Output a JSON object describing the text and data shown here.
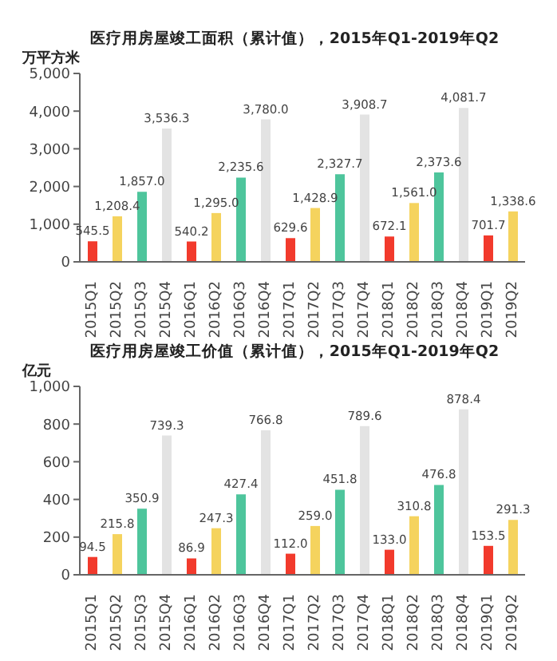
{
  "chart_data": [
    {
      "type": "bar",
      "title": "医疗用房屋竣工面积（累计值），2015年Q1-2019年Q2",
      "ylabel": "万平方米",
      "categories": [
        "2015Q1",
        "2015Q2",
        "2015Q3",
        "2015Q4",
        "2016Q1",
        "2016Q2",
        "2016Q3",
        "2016Q4",
        "2017Q1",
        "2017Q2",
        "2017Q3",
        "2017Q4",
        "2018Q1",
        "2018Q2",
        "2018Q3",
        "2018Q4",
        "2019Q1",
        "2019Q2"
      ],
      "values": [
        545.5,
        1208.4,
        1857.0,
        3536.3,
        540.2,
        1295.0,
        2235.6,
        3780.0,
        629.6,
        1428.9,
        2327.7,
        3908.7,
        672.1,
        1561.0,
        2373.6,
        4081.7,
        701.7,
        1338.6
      ],
      "value_labels": [
        "545.5",
        "1,208.4",
        "1,857.0",
        "3,536.3",
        "540.2",
        "1,295.0",
        "2,235.6",
        "3,780.0",
        "629.6",
        "1,428.9",
        "2,327.7",
        "3,908.7",
        "672.1",
        "1,561.0",
        "2,373.6",
        "4,081.7",
        "701.7",
        "1,338.6"
      ],
      "colors": [
        "#f23a2c",
        "#f5d35e",
        "#4ec59c",
        "#e3e3e3",
        "#f23a2c",
        "#f5d35e",
        "#4ec59c",
        "#e3e3e3",
        "#f23a2c",
        "#f5d35e",
        "#4ec59c",
        "#e3e3e3",
        "#f23a2c",
        "#f5d35e",
        "#4ec59c",
        "#e3e3e3",
        "#f23a2c",
        "#f5d35e"
      ],
      "ylim": [
        0,
        5000
      ],
      "yticks": [
        {
          "value": 0,
          "label": "0"
        },
        {
          "value": 1000,
          "label": "1,000"
        },
        {
          "value": 2000,
          "label": "2,000"
        },
        {
          "value": 3000,
          "label": "3,000"
        },
        {
          "value": 4000,
          "label": "4,000"
        },
        {
          "value": 5000,
          "label": "5,000"
        }
      ],
      "grid": false,
      "legend": false
    },
    {
      "type": "bar",
      "title": "医疗用房屋竣工价值（累计值），2015年Q1-2019年Q2",
      "ylabel": "亿元",
      "categories": [
        "2015Q1",
        "2015Q2",
        "2015Q3",
        "2015Q4",
        "2016Q1",
        "2016Q2",
        "2016Q3",
        "2016Q4",
        "2017Q1",
        "2017Q2",
        "2017Q3",
        "2017Q4",
        "2018Q1",
        "2018Q2",
        "2018Q3",
        "2018Q4",
        "2019Q1",
        "2019Q2"
      ],
      "values": [
        94.5,
        215.8,
        350.9,
        739.3,
        86.9,
        247.3,
        427.4,
        766.8,
        112.0,
        259.0,
        451.8,
        789.6,
        133.0,
        310.8,
        476.8,
        878.4,
        153.5,
        291.3
      ],
      "value_labels": [
        "94.5",
        "215.8",
        "350.9",
        "739.3",
        "86.9",
        "247.3",
        "427.4",
        "766.8",
        "112.0",
        "259.0",
        "451.8",
        "789.6",
        "133.0",
        "310.8",
        "476.8",
        "878.4",
        "153.5",
        "291.3"
      ],
      "colors": [
        "#f23a2c",
        "#f5d35e",
        "#4ec59c",
        "#e3e3e3",
        "#f23a2c",
        "#f5d35e",
        "#4ec59c",
        "#e3e3e3",
        "#f23a2c",
        "#f5d35e",
        "#4ec59c",
        "#e3e3e3",
        "#f23a2c",
        "#f5d35e",
        "#4ec59c",
        "#e3e3e3",
        "#f23a2c",
        "#f5d35e"
      ],
      "ylim": [
        0,
        1000
      ],
      "yticks": [
        {
          "value": 0,
          "label": "0"
        },
        {
          "value": 200,
          "label": "200"
        },
        {
          "value": 400,
          "label": "400"
        },
        {
          "value": 600,
          "label": "600"
        },
        {
          "value": 800,
          "label": "800"
        },
        {
          "value": 1000,
          "label": "1,000"
        }
      ],
      "grid": false,
      "legend": false
    }
  ]
}
